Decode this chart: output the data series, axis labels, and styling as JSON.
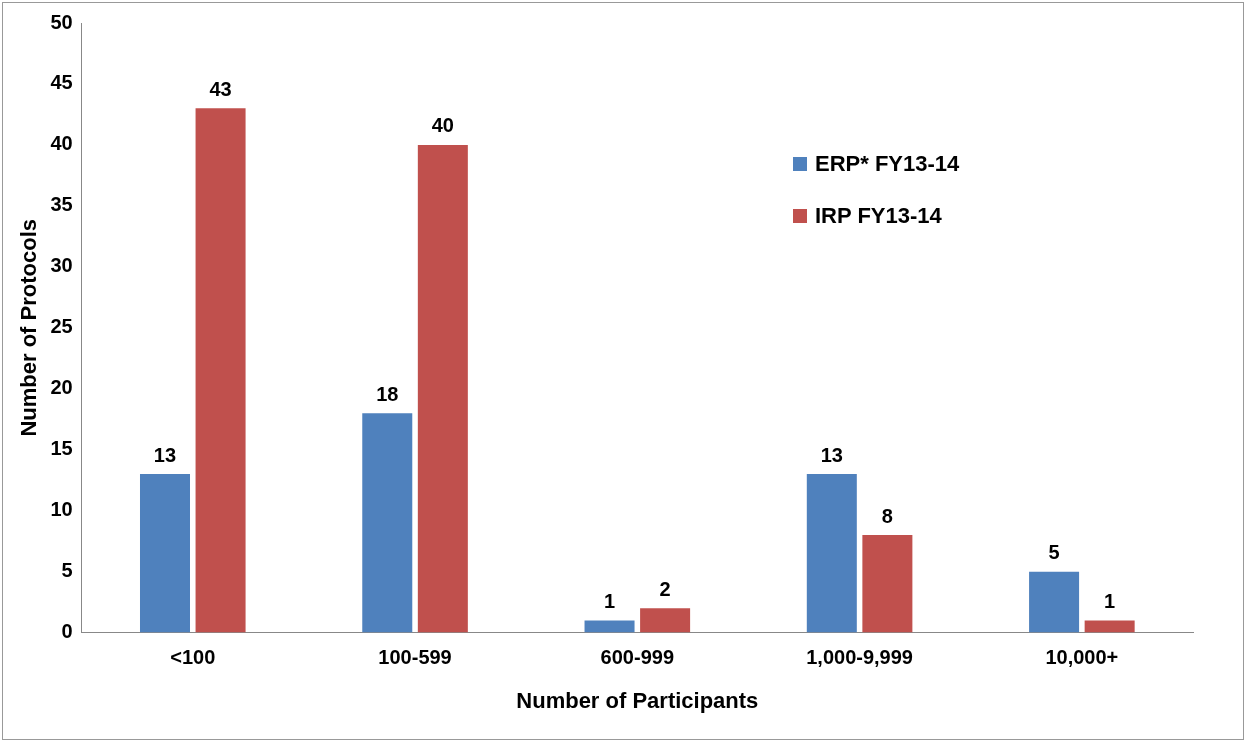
{
  "chart_data": {
    "type": "bar",
    "xlabel": "Number of Participants",
    "ylabel": "Number of Protocols",
    "categories": [
      "<100",
      "100-599",
      "600-999",
      "1,000-9,999",
      "10,000+"
    ],
    "series": [
      {
        "name": "ERP* FY13-14",
        "color": "#4f81bd",
        "values": [
          13,
          18,
          1,
          13,
          5
        ]
      },
      {
        "name": "IRP FY13-14",
        "color": "#c0504d",
        "values": [
          43,
          40,
          2,
          8,
          1
        ]
      }
    ],
    "ylim": [
      0,
      50
    ],
    "yticks": [
      0,
      5,
      10,
      15,
      20,
      25,
      30,
      35,
      40,
      45,
      50
    ],
    "grid": false,
    "legend": "top right",
    "data_labels": true
  }
}
